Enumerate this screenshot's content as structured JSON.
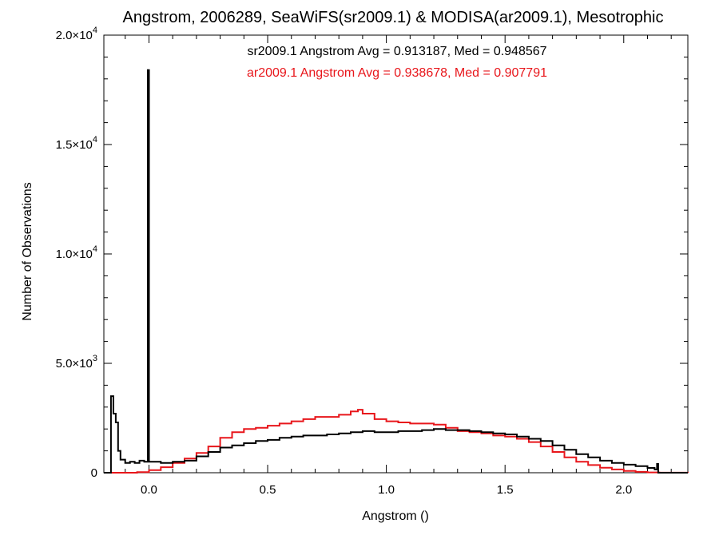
{
  "chart_data": {
    "type": "histogram",
    "title": "Angstrom, 2006289, SeaWiFS(sr2009.1) & MODISA(ar2009.1), Mesotrophic",
    "xlabel": "Angstrom ()",
    "ylabel": "Number of Observations",
    "xlim": [
      -0.19,
      2.27
    ],
    "ylim": [
      0,
      20000
    ],
    "x_ticks": [
      {
        "value": 0.0,
        "label": "0.0"
      },
      {
        "value": 0.5,
        "label": "0.5"
      },
      {
        "value": 1.0,
        "label": "1.0"
      },
      {
        "value": 1.5,
        "label": "1.5"
      },
      {
        "value": 2.0,
        "label": "2.0"
      }
    ],
    "y_ticks": [
      {
        "value": 0,
        "mant": "0",
        "exp": ""
      },
      {
        "value": 5000,
        "mant": "5.0×10",
        "exp": "3"
      },
      {
        "value": 10000,
        "mant": "1.0×10",
        "exp": "4"
      },
      {
        "value": 15000,
        "mant": "1.5×10",
        "exp": "4"
      },
      {
        "value": 20000,
        "mant": "2.0×10",
        "exp": "4"
      }
    ],
    "grid": false,
    "annotations": [
      {
        "text": "sr2009.1 Angstrom Avg = 0.913187, Med = 0.948567",
        "color": "#000000"
      },
      {
        "text": "ar2009.1 Angstrom Avg = 0.938678, Med = 0.907791",
        "color": "#e8161b"
      }
    ],
    "series": [
      {
        "name": "sr2009.1",
        "color": "#000000",
        "points": [
          [
            -0.19,
            0
          ],
          [
            -0.16,
            3500
          ],
          [
            -0.15,
            2700
          ],
          [
            -0.14,
            2300
          ],
          [
            -0.13,
            1000
          ],
          [
            -0.12,
            600
          ],
          [
            -0.1,
            450
          ],
          [
            -0.08,
            500
          ],
          [
            -0.06,
            450
          ],
          [
            -0.04,
            550
          ],
          [
            -0.02,
            500
          ],
          [
            -0.005,
            18400
          ],
          [
            0.0,
            500
          ],
          [
            0.05,
            450
          ],
          [
            0.1,
            500
          ],
          [
            0.15,
            550
          ],
          [
            0.2,
            750
          ],
          [
            0.25,
            950
          ],
          [
            0.3,
            1150
          ],
          [
            0.35,
            1250
          ],
          [
            0.4,
            1350
          ],
          [
            0.45,
            1450
          ],
          [
            0.5,
            1500
          ],
          [
            0.55,
            1600
          ],
          [
            0.6,
            1650
          ],
          [
            0.65,
            1700
          ],
          [
            0.7,
            1700
          ],
          [
            0.75,
            1750
          ],
          [
            0.8,
            1800
          ],
          [
            0.85,
            1850
          ],
          [
            0.9,
            1900
          ],
          [
            0.95,
            1850
          ],
          [
            1.0,
            1850
          ],
          [
            1.05,
            1900
          ],
          [
            1.1,
            1900
          ],
          [
            1.15,
            1950
          ],
          [
            1.2,
            2000
          ],
          [
            1.25,
            1950
          ],
          [
            1.3,
            1950
          ],
          [
            1.35,
            1900
          ],
          [
            1.4,
            1850
          ],
          [
            1.45,
            1800
          ],
          [
            1.5,
            1750
          ],
          [
            1.55,
            1650
          ],
          [
            1.6,
            1550
          ],
          [
            1.65,
            1450
          ],
          [
            1.7,
            1250
          ],
          [
            1.75,
            1050
          ],
          [
            1.8,
            850
          ],
          [
            1.85,
            700
          ],
          [
            1.9,
            550
          ],
          [
            1.95,
            450
          ],
          [
            2.0,
            370
          ],
          [
            2.05,
            300
          ],
          [
            2.1,
            220
          ],
          [
            2.13,
            150
          ],
          [
            2.14,
            400
          ],
          [
            2.145,
            0
          ],
          [
            2.27,
            0
          ]
        ]
      },
      {
        "name": "ar2009.1",
        "color": "#e8161b",
        "points": [
          [
            -0.19,
            0
          ],
          [
            -0.15,
            0
          ],
          [
            -0.1,
            0
          ],
          [
            -0.05,
            30
          ],
          [
            0.0,
            120
          ],
          [
            0.05,
            250
          ],
          [
            0.1,
            450
          ],
          [
            0.15,
            650
          ],
          [
            0.2,
            900
          ],
          [
            0.25,
            1200
          ],
          [
            0.3,
            1600
          ],
          [
            0.35,
            1850
          ],
          [
            0.4,
            2000
          ],
          [
            0.45,
            2050
          ],
          [
            0.5,
            2150
          ],
          [
            0.55,
            2250
          ],
          [
            0.6,
            2350
          ],
          [
            0.65,
            2450
          ],
          [
            0.7,
            2550
          ],
          [
            0.75,
            2550
          ],
          [
            0.8,
            2650
          ],
          [
            0.85,
            2800
          ],
          [
            0.88,
            2880
          ],
          [
            0.9,
            2700
          ],
          [
            0.95,
            2450
          ],
          [
            1.0,
            2350
          ],
          [
            1.05,
            2300
          ],
          [
            1.1,
            2250
          ],
          [
            1.15,
            2250
          ],
          [
            1.2,
            2200
          ],
          [
            1.25,
            2050
          ],
          [
            1.3,
            1900
          ],
          [
            1.35,
            1850
          ],
          [
            1.4,
            1800
          ],
          [
            1.45,
            1700
          ],
          [
            1.5,
            1650
          ],
          [
            1.55,
            1550
          ],
          [
            1.6,
            1400
          ],
          [
            1.65,
            1200
          ],
          [
            1.7,
            950
          ],
          [
            1.75,
            700
          ],
          [
            1.8,
            500
          ],
          [
            1.85,
            350
          ],
          [
            1.9,
            230
          ],
          [
            1.95,
            150
          ],
          [
            2.0,
            80
          ],
          [
            2.05,
            40
          ],
          [
            2.1,
            15
          ],
          [
            2.15,
            5
          ],
          [
            2.27,
            0
          ]
        ]
      }
    ]
  }
}
